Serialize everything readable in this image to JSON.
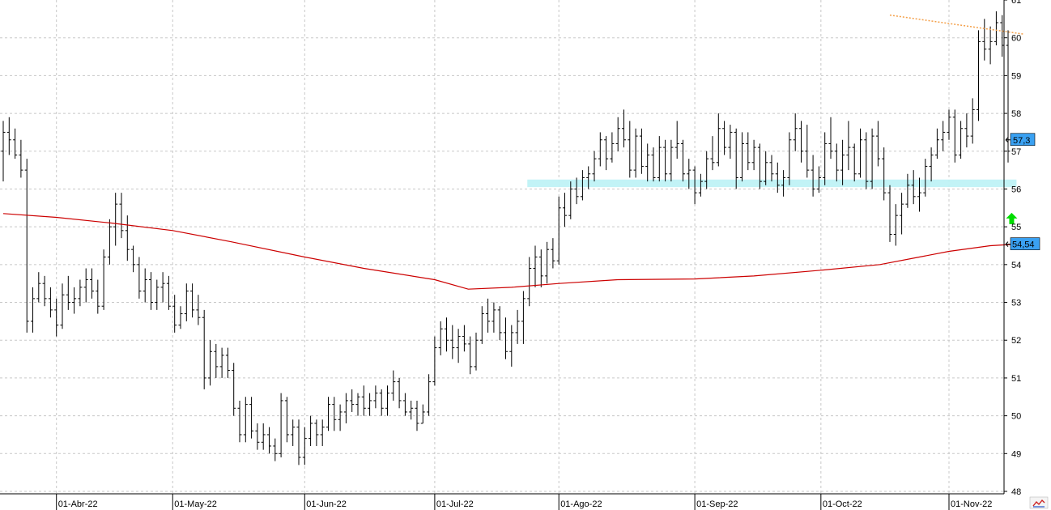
{
  "chart_data": {
    "type": "ohlc",
    "title": "",
    "xlabel": "",
    "ylabel": "",
    "ylim": [
      48,
      61
    ],
    "yticks": [
      "61",
      "60",
      "59",
      "58",
      "57",
      "56",
      "55",
      "54",
      "53",
      "52",
      "51",
      "50",
      "49",
      "48"
    ],
    "xticks": [
      "01-Abr-22",
      "01-May-22",
      "01-Jun-22",
      "01-Jul-22",
      "01-Ago-22",
      "01-Sep-22",
      "01-Oct-22",
      "01-Nov-22"
    ],
    "grid": true,
    "last_price_label": "57,3",
    "last_price": 57.3,
    "ma_label": "54,54",
    "ma_value": 54.54,
    "series": [
      {
        "type": "moving-average",
        "color": "#cc0000",
        "points": [
          [
            "2022-03-21",
            55.35
          ],
          [
            "2022-04-01",
            55.25
          ],
          [
            "2022-04-15",
            55.1
          ],
          [
            "2022-05-01",
            54.9
          ],
          [
            "2022-05-15",
            54.6
          ],
          [
            "2022-06-01",
            54.2
          ],
          [
            "2022-06-15",
            53.9
          ],
          [
            "2022-07-01",
            53.6
          ],
          [
            "2022-07-10",
            53.35
          ],
          [
            "2022-07-20",
            53.4
          ],
          [
            "2022-08-01",
            53.5
          ],
          [
            "2022-08-15",
            53.6
          ],
          [
            "2022-09-01",
            53.62
          ],
          [
            "2022-09-15",
            53.7
          ],
          [
            "2022-10-01",
            53.85
          ],
          [
            "2022-10-15",
            54.0
          ],
          [
            "2022-10-25",
            54.2
          ],
          [
            "2022-11-01",
            54.35
          ],
          [
            "2022-11-10",
            54.5
          ],
          [
            "2022-11-17",
            54.54
          ]
        ]
      }
    ],
    "annotations": [
      {
        "type": "trendline",
        "color": "#f4a04a",
        "style": "dotted",
        "from": [
          "2022-10-18",
          60.6
        ],
        "to": [
          "2022-11-17",
          60.1
        ]
      },
      {
        "type": "support-band",
        "color": "#bff2f6",
        "y_from": 56.05,
        "y_to": 56.25,
        "x_from": "2022-07-24",
        "x_to": "2022-11-17"
      },
      {
        "type": "arrow-up",
        "color": "#00dd00",
        "x": "2022-11-17",
        "y": 55.2
      }
    ],
    "bars": [
      [
        "2022-03-21",
        57.0,
        57.8,
        56.2,
        57.5
      ],
      [
        "2022-03-22",
        57.5,
        57.9,
        56.9,
        57.3
      ],
      [
        "2022-03-23",
        57.3,
        57.6,
        56.8,
        56.9
      ],
      [
        "2022-03-24",
        56.9,
        57.3,
        56.3,
        56.5
      ],
      [
        "2022-03-25",
        56.5,
        56.8,
        52.2,
        52.5
      ],
      [
        "2022-03-28",
        52.5,
        53.4,
        52.2,
        53.1
      ],
      [
        "2022-03-29",
        53.1,
        53.8,
        53.0,
        53.5
      ],
      [
        "2022-03-30",
        53.5,
        53.7,
        52.9,
        53.1
      ],
      [
        "2022-03-31",
        53.1,
        53.4,
        52.6,
        52.8
      ],
      [
        "2022-04-01",
        52.8,
        53.1,
        52.1,
        52.4
      ],
      [
        "2022-04-04",
        52.4,
        53.5,
        52.3,
        53.2
      ],
      [
        "2022-04-05",
        53.2,
        53.7,
        52.8,
        53.0
      ],
      [
        "2022-04-06",
        53.0,
        53.4,
        52.7,
        53.1
      ],
      [
        "2022-04-07",
        53.1,
        53.6,
        52.9,
        53.4
      ],
      [
        "2022-04-08",
        53.4,
        53.9,
        53.0,
        53.6
      ],
      [
        "2022-04-11",
        53.6,
        53.9,
        53.1,
        53.3
      ],
      [
        "2022-04-12",
        53.3,
        53.6,
        52.7,
        52.9
      ],
      [
        "2022-04-13",
        52.9,
        54.4,
        52.8,
        54.2
      ],
      [
        "2022-04-14",
        54.2,
        55.2,
        54.0,
        55.0
      ],
      [
        "2022-04-18",
        55.0,
        55.9,
        54.5,
        55.6
      ],
      [
        "2022-04-19",
        55.6,
        55.9,
        54.7,
        54.9
      ],
      [
        "2022-04-20",
        54.9,
        55.3,
        54.1,
        54.4
      ],
      [
        "2022-04-21",
        54.4,
        54.5,
        53.8,
        54.0
      ],
      [
        "2022-04-22",
        54.0,
        54.2,
        53.1,
        53.3
      ],
      [
        "2022-04-25",
        53.3,
        53.9,
        53.0,
        53.6
      ],
      [
        "2022-04-26",
        53.6,
        53.8,
        52.8,
        53.0
      ],
      [
        "2022-04-27",
        53.0,
        53.6,
        52.8,
        53.4
      ],
      [
        "2022-04-28",
        53.4,
        53.8,
        53.0,
        53.5
      ],
      [
        "2022-04-29",
        53.5,
        53.7,
        52.8,
        52.9
      ],
      [
        "2022-05-02",
        52.9,
        53.2,
        52.2,
        52.4
      ],
      [
        "2022-05-03",
        52.4,
        52.9,
        52.3,
        52.7
      ],
      [
        "2022-05-04",
        52.7,
        53.5,
        52.5,
        53.3
      ],
      [
        "2022-05-05",
        53.3,
        53.5,
        52.6,
        52.8
      ],
      [
        "2022-05-06",
        52.8,
        53.2,
        52.4,
        52.6
      ],
      [
        "2022-05-09",
        52.6,
        52.8,
        50.7,
        51.0
      ],
      [
        "2022-05-10",
        51.0,
        52.0,
        50.8,
        51.7
      ],
      [
        "2022-05-11",
        51.7,
        51.9,
        51.0,
        51.3
      ],
      [
        "2022-05-12",
        51.3,
        51.8,
        51.0,
        51.6
      ],
      [
        "2022-05-13",
        51.6,
        51.8,
        51.0,
        51.2
      ],
      [
        "2022-05-16",
        51.2,
        51.4,
        50.0,
        50.2
      ],
      [
        "2022-05-17",
        50.2,
        50.4,
        49.3,
        49.5
      ],
      [
        "2022-05-18",
        49.5,
        50.5,
        49.3,
        50.3
      ],
      [
        "2022-05-19",
        50.3,
        50.5,
        49.4,
        49.6
      ],
      [
        "2022-05-20",
        49.6,
        49.8,
        49.1,
        49.3
      ],
      [
        "2022-05-23",
        49.3,
        49.8,
        49.1,
        49.5
      ],
      [
        "2022-05-24",
        49.5,
        49.7,
        49.0,
        49.2
      ],
      [
        "2022-05-25",
        49.2,
        49.4,
        48.8,
        49.0
      ],
      [
        "2022-05-26",
        49.0,
        50.6,
        48.9,
        50.4
      ],
      [
        "2022-05-27",
        50.4,
        50.5,
        49.3,
        49.5
      ],
      [
        "2022-05-30",
        49.5,
        49.9,
        49.2,
        49.7
      ],
      [
        "2022-05-31",
        49.7,
        49.9,
        48.7,
        48.9
      ],
      [
        "2022-06-01",
        48.9,
        49.7,
        48.7,
        49.4
      ],
      [
        "2022-06-02",
        49.4,
        50.0,
        49.2,
        49.8
      ],
      [
        "2022-06-03",
        49.8,
        49.9,
        49.2,
        49.5
      ],
      [
        "2022-06-06",
        49.5,
        49.9,
        49.2,
        49.7
      ],
      [
        "2022-06-07",
        49.7,
        50.5,
        49.6,
        50.3
      ],
      [
        "2022-06-08",
        50.3,
        50.5,
        49.6,
        49.9
      ],
      [
        "2022-06-09",
        49.9,
        50.3,
        49.6,
        50.1
      ],
      [
        "2022-06-10",
        50.1,
        50.6,
        49.8,
        50.4
      ],
      [
        "2022-06-13",
        50.4,
        50.7,
        50.1,
        50.3
      ],
      [
        "2022-06-14",
        50.3,
        50.6,
        50.0,
        50.5
      ],
      [
        "2022-06-15",
        50.5,
        50.8,
        50.0,
        50.2
      ],
      [
        "2022-06-16",
        50.2,
        50.6,
        50.0,
        50.4
      ],
      [
        "2022-06-17",
        50.4,
        50.8,
        50.2,
        50.6
      ],
      [
        "2022-06-20",
        50.6,
        50.7,
        50.0,
        50.2
      ],
      [
        "2022-06-21",
        50.2,
        50.8,
        50.0,
        50.6
      ],
      [
        "2022-06-22",
        50.6,
        51.2,
        50.4,
        50.9
      ],
      [
        "2022-06-23",
        50.9,
        51.0,
        50.2,
        50.4
      ],
      [
        "2022-06-24",
        50.4,
        50.6,
        50.0,
        50.1
      ],
      [
        "2022-06-27",
        50.1,
        50.4,
        49.9,
        50.2
      ],
      [
        "2022-06-28",
        50.2,
        50.4,
        49.6,
        49.8
      ],
      [
        "2022-06-29",
        49.8,
        50.3,
        49.8,
        50.1
      ],
      [
        "2022-06-30",
        50.1,
        51.1,
        50.0,
        50.9
      ],
      [
        "2022-07-01",
        50.9,
        52.1,
        50.8,
        51.8
      ],
      [
        "2022-07-04",
        51.8,
        52.5,
        51.6,
        52.3
      ],
      [
        "2022-07-05",
        52.3,
        52.6,
        51.7,
        52.0
      ],
      [
        "2022-07-06",
        52.0,
        52.4,
        51.5,
        51.8
      ],
      [
        "2022-07-07",
        51.8,
        52.3,
        51.4,
        52.1
      ],
      [
        "2022-07-08",
        52.1,
        52.4,
        51.7,
        51.9
      ],
      [
        "2022-07-11",
        51.9,
        52.1,
        51.1,
        51.3
      ],
      [
        "2022-07-12",
        51.3,
        52.2,
        51.2,
        52.0
      ],
      [
        "2022-07-13",
        52.0,
        52.9,
        51.9,
        52.7
      ],
      [
        "2022-07-14",
        52.7,
        53.1,
        52.2,
        52.5
      ],
      [
        "2022-07-15",
        52.5,
        53.0,
        52.2,
        52.8
      ],
      [
        "2022-07-18",
        52.8,
        52.9,
        52.0,
        52.2
      ],
      [
        "2022-07-19",
        52.2,
        52.6,
        51.5,
        51.7
      ],
      [
        "2022-07-20",
        51.7,
        52.4,
        51.3,
        52.2
      ],
      [
        "2022-07-21",
        52.2,
        52.8,
        51.9,
        52.5
      ],
      [
        "2022-07-22",
        52.5,
        53.3,
        51.9,
        53.1
      ],
      [
        "2022-07-25",
        53.1,
        54.2,
        52.9,
        53.9
      ],
      [
        "2022-07-26",
        53.9,
        54.5,
        53.4,
        54.2
      ],
      [
        "2022-07-27",
        54.2,
        54.4,
        53.4,
        53.7
      ],
      [
        "2022-07-28",
        53.7,
        54.6,
        53.5,
        54.4
      ],
      [
        "2022-07-29",
        54.4,
        54.7,
        53.9,
        54.1
      ],
      [
        "2022-08-01",
        54.1,
        55.8,
        54.0,
        55.5
      ],
      [
        "2022-08-02",
        55.5,
        55.9,
        55.0,
        55.3
      ],
      [
        "2022-08-03",
        55.3,
        56.2,
        55.2,
        56.0
      ],
      [
        "2022-08-04",
        56.0,
        56.3,
        55.6,
        55.8
      ],
      [
        "2022-08-05",
        55.8,
        56.5,
        55.7,
        56.3
      ],
      [
        "2022-08-08",
        56.3,
        56.6,
        56.0,
        56.4
      ],
      [
        "2022-08-09",
        56.4,
        57.0,
        56.2,
        56.8
      ],
      [
        "2022-08-10",
        56.8,
        57.5,
        56.6,
        57.3
      ],
      [
        "2022-08-11",
        57.3,
        57.4,
        56.5,
        56.8
      ],
      [
        "2022-08-12",
        56.8,
        57.5,
        56.7,
        57.2
      ],
      [
        "2022-08-15",
        57.2,
        57.9,
        57.0,
        57.6
      ],
      [
        "2022-08-16",
        57.6,
        58.1,
        57.1,
        57.3
      ],
      [
        "2022-08-17",
        57.3,
        57.8,
        56.3,
        56.5
      ],
      [
        "2022-08-18",
        56.5,
        57.6,
        56.3,
        57.4
      ],
      [
        "2022-08-19",
        57.4,
        57.6,
        56.4,
        56.6
      ],
      [
        "2022-08-22",
        56.6,
        57.2,
        56.2,
        56.9
      ],
      [
        "2022-08-23",
        56.9,
        57.1,
        56.2,
        56.3
      ],
      [
        "2022-08-24",
        56.3,
        57.4,
        56.2,
        57.1
      ],
      [
        "2022-08-25",
        57.1,
        57.3,
        56.2,
        56.4
      ],
      [
        "2022-08-26",
        56.4,
        57.3,
        56.2,
        57.1
      ],
      [
        "2022-08-29",
        57.1,
        57.8,
        56.8,
        57.2
      ],
      [
        "2022-08-30",
        57.2,
        57.3,
        56.2,
        56.4
      ],
      [
        "2022-08-31",
        56.4,
        56.8,
        56.0,
        56.5
      ],
      [
        "2022-09-01",
        56.5,
        56.6,
        55.6,
        55.9
      ],
      [
        "2022-09-02",
        55.9,
        56.4,
        55.8,
        56.2
      ],
      [
        "2022-09-05",
        56.2,
        57.0,
        56.0,
        56.8
      ],
      [
        "2022-09-06",
        56.8,
        57.4,
        56.5,
        56.7
      ],
      [
        "2022-09-07",
        56.7,
        58.0,
        56.6,
        57.6
      ],
      [
        "2022-09-08",
        57.6,
        57.8,
        56.9,
        57.1
      ],
      [
        "2022-09-09",
        57.1,
        57.7,
        56.8,
        57.5
      ],
      [
        "2022-09-12",
        57.5,
        57.6,
        56.0,
        56.3
      ],
      [
        "2022-09-13",
        56.3,
        57.5,
        56.2,
        57.2
      ],
      [
        "2022-09-14",
        57.2,
        57.5,
        56.5,
        56.7
      ],
      [
        "2022-09-15",
        56.7,
        57.3,
        56.5,
        57.1
      ],
      [
        "2022-09-16",
        57.1,
        57.2,
        56.0,
        56.2
      ],
      [
        "2022-09-19",
        56.2,
        57.0,
        56.1,
        56.7
      ],
      [
        "2022-09-20",
        56.7,
        56.9,
        56.2,
        56.4
      ],
      [
        "2022-09-21",
        56.4,
        56.7,
        55.9,
        56.1
      ],
      [
        "2022-09-22",
        56.1,
        56.5,
        55.8,
        56.3
      ],
      [
        "2022-09-23",
        56.3,
        57.5,
        56.1,
        57.3
      ],
      [
        "2022-09-26",
        57.3,
        58.0,
        57.0,
        57.6
      ],
      [
        "2022-09-27",
        57.6,
        57.8,
        56.7,
        57.0
      ],
      [
        "2022-09-28",
        57.0,
        57.7,
        56.3,
        56.5
      ],
      [
        "2022-09-29",
        56.5,
        56.9,
        55.8,
        56.0
      ],
      [
        "2022-09-30",
        56.0,
        56.6,
        55.9,
        56.3
      ],
      [
        "2022-10-03",
        56.3,
        57.5,
        56.1,
        57.2
      ],
      [
        "2022-10-04",
        57.2,
        57.9,
        56.8,
        57.0
      ],
      [
        "2022-10-05",
        57.0,
        57.2,
        56.2,
        56.5
      ],
      [
        "2022-10-06",
        56.5,
        57.3,
        56.1,
        56.9
      ],
      [
        "2022-10-07",
        56.9,
        57.8,
        56.5,
        57.1
      ],
      [
        "2022-10-10",
        57.1,
        57.2,
        56.2,
        56.4
      ],
      [
        "2022-10-11",
        56.4,
        57.6,
        56.3,
        57.3
      ],
      [
        "2022-10-12",
        57.3,
        57.5,
        56.0,
        56.2
      ],
      [
        "2022-10-13",
        56.2,
        57.6,
        56.0,
        57.4
      ],
      [
        "2022-10-14",
        57.4,
        57.8,
        56.6,
        56.8
      ],
      [
        "2022-10-17",
        56.8,
        57.1,
        55.7,
        55.9
      ],
      [
        "2022-10-18",
        55.9,
        56.1,
        54.6,
        54.8
      ],
      [
        "2022-10-19",
        54.8,
        55.6,
        54.5,
        55.3
      ],
      [
        "2022-10-20",
        55.3,
        55.9,
        54.8,
        55.6
      ],
      [
        "2022-10-21",
        55.6,
        56.4,
        55.5,
        56.1
      ],
      [
        "2022-10-24",
        56.1,
        56.5,
        55.6,
        55.8
      ],
      [
        "2022-10-25",
        55.8,
        56.3,
        55.4,
        55.9
      ],
      [
        "2022-10-26",
        55.9,
        56.8,
        55.8,
        56.6
      ],
      [
        "2022-10-27",
        56.6,
        57.1,
        56.2,
        56.9
      ],
      [
        "2022-10-28",
        56.9,
        57.6,
        56.8,
        57.3
      ],
      [
        "2022-10-31",
        57.3,
        57.8,
        57.0,
        57.5
      ],
      [
        "2022-11-01",
        57.5,
        58.1,
        57.3,
        57.9
      ],
      [
        "2022-11-02",
        57.9,
        58.1,
        56.7,
        56.9
      ],
      [
        "2022-11-03",
        56.9,
        57.8,
        56.8,
        57.6
      ],
      [
        "2022-11-04",
        57.6,
        58.0,
        57.1,
        57.4
      ],
      [
        "2022-11-07",
        57.4,
        58.4,
        57.2,
        58.1
      ],
      [
        "2022-11-08",
        58.1,
        60.2,
        57.8,
        59.9
      ],
      [
        "2022-11-09",
        59.9,
        60.5,
        59.4,
        59.7
      ],
      [
        "2022-11-10",
        59.7,
        60.3,
        59.3,
        59.9
      ],
      [
        "2022-11-11",
        59.9,
        60.7,
        59.8,
        60.4
      ],
      [
        "2022-11-14",
        60.4,
        60.6,
        59.5,
        59.8
      ],
      [
        "2022-11-15",
        59.8,
        60.2,
        56.7,
        57.0
      ]
    ]
  }
}
